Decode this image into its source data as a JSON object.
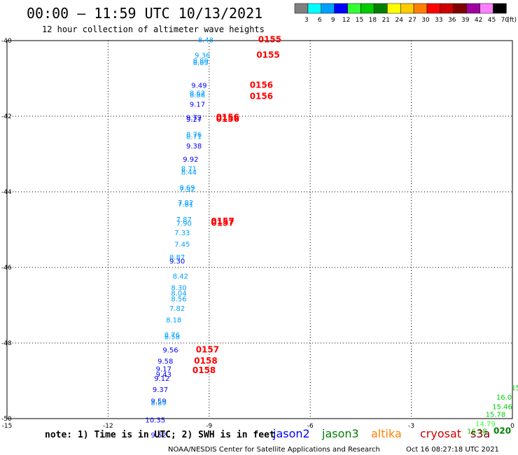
{
  "header": {
    "title": "00:00 – 11:59 UTC 10/13/2021",
    "subtitle": "12 hour collection of altimeter wave heights"
  },
  "scale": {
    "values": [
      "3",
      "6",
      "9",
      "12",
      "15",
      "18",
      "21",
      "24",
      "27",
      "30",
      "33",
      "36",
      "39",
      "42",
      "45",
      "70"
    ],
    "unit": "(ft)",
    "colors": [
      "#808080",
      "#00ffff",
      "#00a0ff",
      "#0000ff",
      "#33ff33",
      "#00cc00",
      "#008000",
      "#ffff00",
      "#ffcc00",
      "#ff8000",
      "#ff0000",
      "#cc0000",
      "#800000",
      "#a000a0",
      "#ff80ff",
      "#000000"
    ]
  },
  "footer": {
    "note": "note: 1) Time is in UTC; 2) SWH is in feet",
    "credit": "NOAA/NESDIS Center for Satellite Applications and Research",
    "timestamp": "Oct 16 08:27:18 UTC 2021"
  },
  "legend": [
    {
      "name": "jason2",
      "color": "#0000ff"
    },
    {
      "name": "jason3",
      "color": "#008000"
    },
    {
      "name": "altika",
      "color": "#ff8000"
    },
    {
      "name": "cryosat",
      "color": "#cc0000"
    },
    {
      "name": "s3a",
      "color": "#800000"
    }
  ],
  "chart_data": {
    "type": "scatter",
    "xlim": [
      -15,
      0
    ],
    "ylim": [
      -50,
      -40
    ],
    "x_ticks": [
      "-15",
      "-12",
      "-9",
      "-6",
      "-3",
      "0"
    ],
    "y_ticks": [
      "-40",
      "-42",
      "-44",
      "-46",
      "-48",
      "-50"
    ],
    "grid": true,
    "points": [
      {
        "x": -9.1,
        "y": -40.05,
        "label": "8.48",
        "color": "#00a0ff"
      },
      {
        "x": -9.2,
        "y": -40.45,
        "label": "9.36",
        "color": "#00a0ff"
      },
      {
        "x": -9.25,
        "y": -40.6,
        "label": "8.89",
        "color": "#00a0ff"
      },
      {
        "x": -9.25,
        "y": -40.65,
        "label": "8.89",
        "color": "#00a0ff"
      },
      {
        "x": -9.3,
        "y": -41.25,
        "label": "9.49",
        "color": "#0000ff"
      },
      {
        "x": -9.35,
        "y": -41.45,
        "label": "8.62",
        "color": "#00a0ff"
      },
      {
        "x": -9.35,
        "y": -41.5,
        "label": "8.88",
        "color": "#00a0ff"
      },
      {
        "x": -9.35,
        "y": -41.75,
        "label": "9.17",
        "color": "#0000ff"
      },
      {
        "x": -9.45,
        "y": -42.1,
        "label": "9.72",
        "color": "#0000ff"
      },
      {
        "x": -9.45,
        "y": -42.15,
        "label": "9.27",
        "color": "#0000ff"
      },
      {
        "x": -9.45,
        "y": -42.55,
        "label": "8.76",
        "color": "#00a0ff"
      },
      {
        "x": -9.45,
        "y": -42.6,
        "label": "8.71",
        "color": "#00a0ff"
      },
      {
        "x": -9.45,
        "y": -42.85,
        "label": "9.38",
        "color": "#0000ff"
      },
      {
        "x": -9.55,
        "y": -43.2,
        "label": "9.92",
        "color": "#0000ff"
      },
      {
        "x": -9.6,
        "y": -43.45,
        "label": "8.71",
        "color": "#00a0ff"
      },
      {
        "x": -9.6,
        "y": -43.55,
        "label": "8.44",
        "color": "#00a0ff"
      },
      {
        "x": -9.65,
        "y": -43.95,
        "label": "8.69",
        "color": "#00a0ff"
      },
      {
        "x": -9.65,
        "y": -44.0,
        "label": "7.92",
        "color": "#00a0ff"
      },
      {
        "x": -9.7,
        "y": -44.35,
        "label": "7.82",
        "color": "#00a0ff"
      },
      {
        "x": -9.7,
        "y": -44.4,
        "label": "7.81",
        "color": "#00a0ff"
      },
      {
        "x": -9.75,
        "y": -44.8,
        "label": "7.87",
        "color": "#00a0ff"
      },
      {
        "x": -9.75,
        "y": -44.9,
        "label": "7.90",
        "color": "#00a0ff"
      },
      {
        "x": -9.8,
        "y": -45.15,
        "label": "7.33",
        "color": "#00a0ff"
      },
      {
        "x": -9.8,
        "y": -45.45,
        "label": "7.45",
        "color": "#00a0ff"
      },
      {
        "x": -9.95,
        "y": -45.8,
        "label": "8.87",
        "color": "#00a0ff"
      },
      {
        "x": -9.95,
        "y": -45.9,
        "label": "9.30",
        "color": "#0000ff"
      },
      {
        "x": -9.85,
        "y": -46.3,
        "label": "8.42",
        "color": "#00a0ff"
      },
      {
        "x": -9.9,
        "y": -46.6,
        "label": "8.30",
        "color": "#00a0ff"
      },
      {
        "x": -9.9,
        "y": -46.75,
        "label": "8.04",
        "color": "#00a0ff"
      },
      {
        "x": -9.9,
        "y": -46.9,
        "label": "8.56",
        "color": "#00a0ff"
      },
      {
        "x": -9.95,
        "y": -47.15,
        "label": "7.82",
        "color": "#00a0ff"
      },
      {
        "x": -10.05,
        "y": -47.45,
        "label": "8.18",
        "color": "#00a0ff"
      },
      {
        "x": -10.1,
        "y": -47.85,
        "label": "8.76",
        "color": "#00a0ff"
      },
      {
        "x": -10.1,
        "y": -47.9,
        "label": "8.58",
        "color": "#00a0ff"
      },
      {
        "x": -10.15,
        "y": -48.25,
        "label": "9.56",
        "color": "#0000ff"
      },
      {
        "x": -10.3,
        "y": -48.55,
        "label": "9.58",
        "color": "#0000ff"
      },
      {
        "x": -10.35,
        "y": -48.75,
        "label": "9.17",
        "color": "#0000ff"
      },
      {
        "x": -10.35,
        "y": -48.9,
        "label": "9.43",
        "color": "#0000ff"
      },
      {
        "x": -10.4,
        "y": -49.0,
        "label": "9.12",
        "color": "#0000ff"
      },
      {
        "x": -10.45,
        "y": -49.3,
        "label": "9.37",
        "color": "#0000ff"
      },
      {
        "x": -10.5,
        "y": -49.6,
        "label": "9.59",
        "color": "#0000ff"
      },
      {
        "x": -10.5,
        "y": -49.65,
        "label": "8.89",
        "color": "#00a0ff"
      },
      {
        "x": -10.6,
        "y": -50.1,
        "label": "10.35",
        "color": "#0000ff"
      },
      {
        "x": -10.5,
        "y": -50.5,
        "label": "9.52",
        "color": "#0000ff"
      },
      {
        "x": 0.1,
        "y": -49.25,
        "label": "15",
        "color": "#00cc00"
      },
      {
        "x": -0.25,
        "y": -49.5,
        "label": "16.0",
        "color": "#00cc00"
      },
      {
        "x": -0.3,
        "y": -49.75,
        "label": "15.46",
        "color": "#00cc00"
      },
      {
        "x": -0.5,
        "y": -49.95,
        "label": "15.78",
        "color": "#00cc00"
      },
      {
        "x": -0.8,
        "y": -50.2,
        "label": "14.79",
        "color": "#33ff33"
      },
      {
        "x": -1.05,
        "y": -50.4,
        "label": "16.18",
        "color": "#00cc00"
      }
    ],
    "track_times": [
      {
        "x": -7.2,
        "y": -40.05,
        "label": "0155",
        "color": "#ff0000"
      },
      {
        "x": -7.25,
        "y": -40.45,
        "label": "0155",
        "color": "#ff0000"
      },
      {
        "x": -7.45,
        "y": -41.25,
        "label": "0156",
        "color": "#ff0000"
      },
      {
        "x": -7.45,
        "y": -41.55,
        "label": "0156",
        "color": "#ff0000"
      },
      {
        "x": -8.45,
        "y": -42.1,
        "label": "0156",
        "color": "#ff0000"
      },
      {
        "x": -8.45,
        "y": -42.15,
        "label": "0156",
        "color": "#ff0000"
      },
      {
        "x": -8.6,
        "y": -44.85,
        "label": "0157",
        "color": "#ff0000"
      },
      {
        "x": -8.6,
        "y": -44.9,
        "label": "0157",
        "color": "#ff0000"
      },
      {
        "x": -9.05,
        "y": -48.25,
        "label": "0157",
        "color": "#ff0000"
      },
      {
        "x": -9.1,
        "y": -48.55,
        "label": "0158",
        "color": "#ff0000"
      },
      {
        "x": -9.15,
        "y": -48.8,
        "label": "0158",
        "color": "#ff0000"
      },
      {
        "x": -0.3,
        "y": -50.4,
        "label": "020",
        "color": "#008000"
      }
    ]
  }
}
